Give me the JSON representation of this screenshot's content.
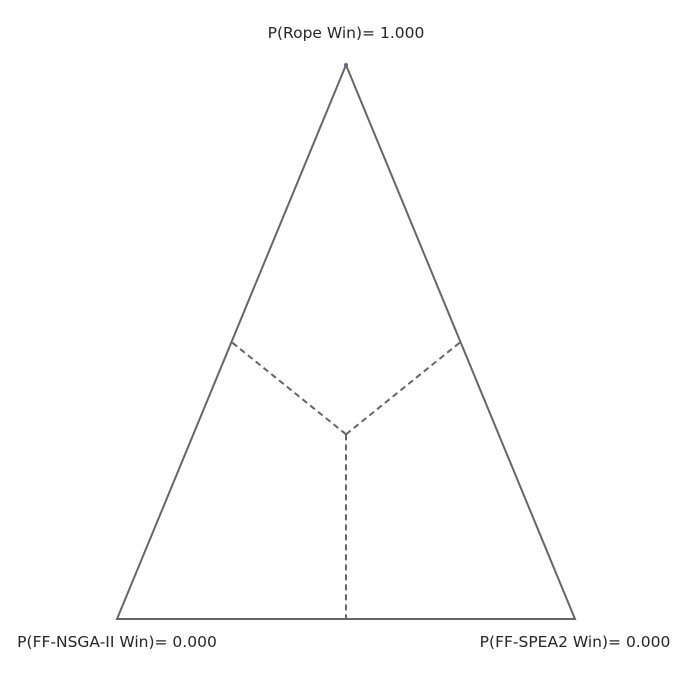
{
  "chart_data": {
    "type": "ternary",
    "vertices": [
      {
        "id": "top",
        "name": "P(Rope Win)",
        "value": 1.0,
        "label": "P(Rope Win)= 1.000"
      },
      {
        "id": "left",
        "name": "P(FF-NSGA-II Win)",
        "value": 0.0,
        "label": "P(FF-NSGA-II Win)= 0.000"
      },
      {
        "id": "right",
        "name": "P(FF-SPEA2 Win)",
        "value": 0.0,
        "label": "P(FF-SPEA2 Win)= 0.000"
      }
    ],
    "points": [
      {
        "rope": 1.0,
        "nsga2": 0.0,
        "spea2": 0.0
      }
    ],
    "region_boundaries": "dashed",
    "colors": {
      "outline": "#666666",
      "dashed": "#666666",
      "point": "#5a6a80",
      "text": "#262626"
    }
  }
}
